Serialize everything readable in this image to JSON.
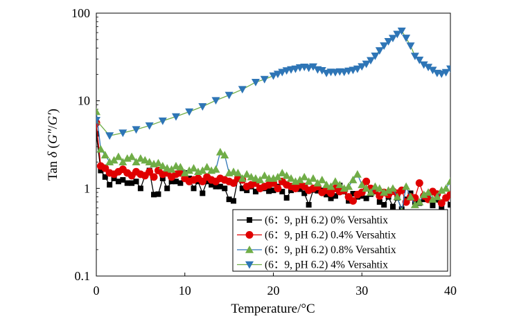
{
  "chart_data": {
    "type": "line",
    "xlabel": "Temperature/°C",
    "ylabel_parts": [
      "Tan ",
      "δ",
      " (",
      "G″",
      "/",
      "G′",
      ")"
    ],
    "xlim": [
      0,
      40
    ],
    "ylim": [
      0.1,
      100
    ],
    "yscale": "log",
    "xticks": [
      0,
      10,
      20,
      30,
      40
    ],
    "xtick_labels": [
      "0",
      "10",
      "20",
      "30",
      "40"
    ],
    "yticks": [
      0.1,
      1,
      10,
      100
    ],
    "ytick_labels": [
      "0.1",
      "1",
      "10",
      "100"
    ],
    "grid": false,
    "legend_position": "bottom-right",
    "series": [
      {
        "name": "(6：9, pH 6.2) 0% Versahtix",
        "color": "#000000",
        "line_color": "#000000",
        "marker": "square",
        "x": [
          0,
          0.5,
          1,
          1.5,
          2,
          2.5,
          3,
          3.5,
          4,
          4.5,
          5,
          5.5,
          6,
          6.5,
          7,
          7.5,
          8,
          8.5,
          9,
          9.5,
          10,
          10.5,
          11,
          11.5,
          12,
          12.5,
          13,
          13.5,
          14,
          14.5,
          15,
          15.5,
          16,
          16.5,
          17,
          17.5,
          18,
          18.5,
          19,
          19.5,
          20,
          20.5,
          21,
          21.5,
          22,
          22.5,
          23,
          23.5,
          24,
          24.5,
          25,
          25.5,
          26,
          26.5,
          27,
          27.5,
          28,
          28.5,
          29,
          29.5,
          30,
          30.5,
          31,
          31.5,
          32,
          32.5,
          33,
          33.5,
          34,
          34.5,
          35,
          35.5,
          36,
          36.5,
          37,
          37.5,
          38,
          38.5,
          39,
          39.5,
          40
        ],
        "y": [
          4.2,
          1.6,
          1.35,
          1.1,
          1.3,
          1.2,
          1.25,
          1.15,
          1.15,
          1.2,
          1.0,
          1.4,
          1.6,
          0.85,
          0.86,
          1.3,
          1.0,
          1.2,
          1.2,
          1.15,
          1.5,
          1.3,
          1.0,
          1.2,
          0.88,
          1.2,
          1.1,
          1.05,
          1.05,
          1.0,
          0.75,
          0.72,
          1.3,
          1.0,
          0.95,
          1.05,
          0.92,
          1.0,
          1.0,
          0.93,
          0.95,
          1.05,
          0.92,
          0.78,
          0.95,
          1.0,
          0.98,
          0.88,
          0.65,
          0.96,
          0.94,
          0.95,
          0.85,
          0.77,
          0.82,
          1.08,
          0.92,
          0.72,
          0.87,
          0.8,
          0.82,
          0.77,
          0.86,
          0.92,
          0.7,
          0.65,
          0.8,
          0.62,
          0.78,
          0.58,
          0.75,
          0.88,
          0.7,
          0.68,
          0.75,
          0.8,
          0.64,
          0.74,
          0.62,
          0.78,
          0.65
        ]
      },
      {
        "name": "(6：9, pH 6.2) 0.4% Versahtix",
        "color": "#e00000",
        "line_color": "#e00000",
        "marker": "circle",
        "x": [
          0,
          0.5,
          1,
          1.5,
          2,
          2.5,
          3,
          3.5,
          4,
          4.5,
          5,
          5.5,
          6,
          6.5,
          7,
          7.5,
          8,
          8.5,
          9,
          9.5,
          10,
          10.5,
          11,
          11.5,
          12,
          12.5,
          13,
          13.5,
          14,
          14.5,
          15,
          15.5,
          16,
          16.5,
          17,
          17.5,
          18,
          18.5,
          19,
          19.5,
          20,
          20.5,
          21,
          21.5,
          22,
          22.5,
          23,
          23.5,
          24,
          24.5,
          25,
          25.5,
          26,
          26.5,
          27,
          27.5,
          28,
          28.5,
          29,
          29.5,
          30,
          30.5,
          31,
          31.5,
          32,
          32.5,
          33,
          33.5,
          34,
          34.5,
          35,
          35.5,
          36,
          36.5,
          37,
          37.5,
          38,
          38.5,
          39,
          39.5,
          40
        ],
        "y": [
          5.6,
          1.8,
          1.7,
          1.5,
          1.45,
          1.55,
          1.65,
          1.5,
          1.4,
          1.55,
          1.45,
          1.4,
          1.55,
          1.35,
          1.6,
          1.45,
          1.5,
          1.35,
          1.45,
          1.5,
          1.3,
          1.2,
          1.25,
          1.3,
          1.2,
          1.35,
          1.25,
          1.2,
          1.3,
          1.25,
          1.2,
          1.15,
          1.3,
          1.25,
          1.05,
          1.1,
          1.15,
          1.0,
          1.05,
          1.1,
          1.15,
          1.0,
          1.2,
          1.1,
          1.05,
          1.0,
          1.1,
          1.05,
          0.95,
          1.0,
          1.05,
          0.9,
          0.95,
          0.88,
          1.0,
          0.92,
          0.95,
          0.8,
          0.72,
          0.85,
          0.9,
          1.2,
          1.0,
          0.95,
          0.82,
          0.9,
          0.85,
          0.93,
          0.88,
          0.95,
          0.7,
          0.8,
          0.78,
          1.15,
          0.82,
          0.75,
          0.92,
          0.86,
          0.68,
          0.78,
          0.85
        ]
      },
      {
        "name": "(6：9, pH 6.2) 0.8% Versahtix",
        "color": "#70ad47",
        "line_color": "#2e75b6",
        "marker": "triangle-up",
        "x": [
          0,
          0.5,
          1,
          1.5,
          2,
          2.5,
          3,
          3.5,
          4,
          4.5,
          5,
          5.5,
          6,
          6.5,
          7,
          7.5,
          8,
          8.5,
          9,
          9.5,
          10,
          10.5,
          11,
          11.5,
          12,
          12.5,
          13,
          13.5,
          14,
          14.5,
          15,
          15.5,
          16,
          16.5,
          17,
          17.5,
          18,
          18.5,
          19,
          19.5,
          20,
          20.5,
          21,
          21.5,
          22,
          22.5,
          23,
          23.5,
          24,
          24.5,
          25,
          25.5,
          26,
          26.5,
          27,
          27.5,
          28,
          28.5,
          29,
          29.5,
          30,
          30.5,
          31,
          31.5,
          32,
          32.5,
          33,
          33.5,
          34,
          34.5,
          35,
          35.5,
          36,
          36.5,
          37,
          37.5,
          38,
          38.5,
          39,
          39.5,
          40
        ],
        "y": [
          7.5,
          2.8,
          2.4,
          2.0,
          2.1,
          2.3,
          2.0,
          2.2,
          2.3,
          2.0,
          2.2,
          2.1,
          2.0,
          1.9,
          1.95,
          1.8,
          1.7,
          1.65,
          1.8,
          1.75,
          1.5,
          1.6,
          1.7,
          1.55,
          1.6,
          1.75,
          1.6,
          1.65,
          2.6,
          2.4,
          1.5,
          1.55,
          1.5,
          1.3,
          1.45,
          1.35,
          1.3,
          1.25,
          1.4,
          1.3,
          1.3,
          1.35,
          1.5,
          1.4,
          1.3,
          1.2,
          1.25,
          1.35,
          1.2,
          1.3,
          1.15,
          1.25,
          1.1,
          1.05,
          1.2,
          1.1,
          1.0,
          1.05,
          1.25,
          1.45,
          1.1,
          1.0,
          0.9,
          1.05,
          1.0,
          0.9,
          0.95,
          1.0,
          0.8,
          0.55,
          1.05,
          0.8,
          0.65,
          0.7,
          0.85,
          0.9,
          0.75,
          0.8,
          0.95,
          1.0,
          1.2
        ]
      },
      {
        "name": "(6：9, pH 6.2) 4% Versahtix",
        "color": "#2e75b6",
        "line_color": "#70ad47",
        "marker": "triangle-down",
        "x": [
          0,
          1.5,
          3,
          4.5,
          6,
          7.5,
          9,
          10.5,
          12,
          13.5,
          15,
          16.5,
          18,
          19,
          20,
          20.5,
          21,
          21.5,
          22,
          22.5,
          23,
          23.5,
          24,
          24.5,
          25,
          25.5,
          26,
          26.5,
          27,
          27.5,
          28,
          28.5,
          29,
          29.5,
          30,
          30.5,
          31,
          31.5,
          32,
          32.5,
          33,
          33.5,
          34,
          34.5,
          35,
          35.5,
          36,
          36.5,
          37,
          37.5,
          38,
          38.5,
          39,
          39.5,
          40
        ],
        "y": [
          6,
          4,
          4.3,
          4.7,
          5.2,
          5.9,
          6.6,
          7.5,
          8.6,
          10.1,
          11.6,
          13.5,
          16.3,
          17.6,
          19.3,
          20.2,
          21.2,
          22.1,
          22.7,
          23.1,
          23.9,
          24.3,
          23.7,
          24.5,
          22.7,
          22.2,
          20.7,
          21.3,
          21.1,
          21.5,
          21.3,
          21.9,
          22.4,
          23.1,
          24.6,
          26.3,
          28.9,
          32.5,
          37.4,
          42.5,
          47.6,
          51.8,
          57.6,
          62.7,
          52.1,
          42.4,
          32.4,
          29.2,
          25.8,
          24.2,
          22.4,
          20.7,
          20.3,
          21.1,
          23.2
        ]
      }
    ]
  }
}
